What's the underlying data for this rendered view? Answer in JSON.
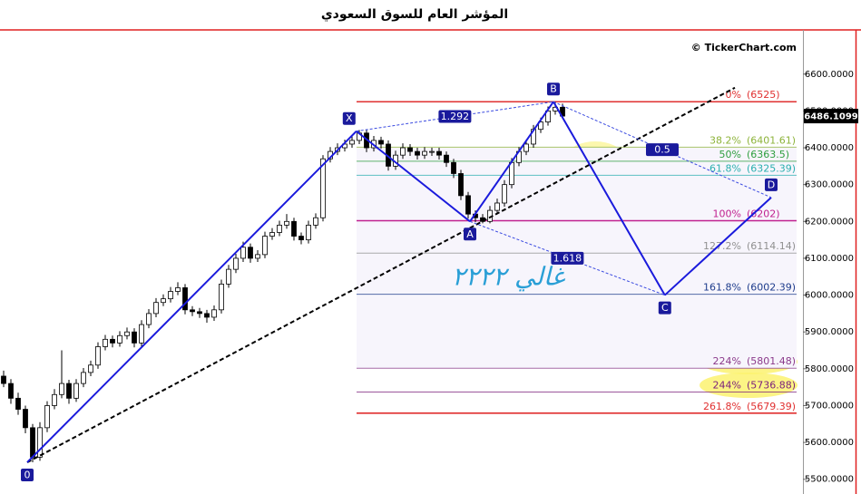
{
  "chart_data": {
    "type": "candlestick",
    "title": "المؤشر العام للسوق السعودي",
    "watermark": "© TickerChart.com",
    "annotation": "غالي ٢٢٢٢",
    "xlim": [
      -0.5,
      109.5
    ],
    "ylim": [
      5460,
      6720
    ],
    "yticks": [
      {
        "value": 5500,
        "label": "5500.0000"
      },
      {
        "value": 5600,
        "label": "5600.0000"
      },
      {
        "value": 5700,
        "label": "5700.0000"
      },
      {
        "value": 5800,
        "label": "5800.0000"
      },
      {
        "value": 5900,
        "label": "5900.0000"
      },
      {
        "value": 6000,
        "label": "6000.0000"
      },
      {
        "value": 6100,
        "label": "6100.0000"
      },
      {
        "value": 6200,
        "label": "6200.0000"
      },
      {
        "value": 6300,
        "label": "6300.0000"
      },
      {
        "value": 6400,
        "label": "6400.0000"
      },
      {
        "value": 6500,
        "label": "6500.0000"
      },
      {
        "value": 6600,
        "label": "6600.0000"
      }
    ],
    "last_price": 6486.1099,
    "candles": [
      [
        5780,
        5795,
        5750,
        5760
      ],
      [
        5760,
        5772,
        5705,
        5720
      ],
      [
        5720,
        5735,
        5675,
        5690
      ],
      [
        5690,
        5700,
        5625,
        5640
      ],
      [
        5640,
        5650,
        5546,
        5560
      ],
      [
        5560,
        5655,
        5550,
        5640
      ],
      [
        5640,
        5712,
        5628,
        5700
      ],
      [
        5700,
        5745,
        5690,
        5730
      ],
      [
        5730,
        5850,
        5720,
        5760
      ],
      [
        5760,
        5770,
        5705,
        5720
      ],
      [
        5720,
        5772,
        5710,
        5760
      ],
      [
        5760,
        5802,
        5750,
        5790
      ],
      [
        5790,
        5822,
        5780,
        5810
      ],
      [
        5810,
        5872,
        5800,
        5860
      ],
      [
        5860,
        5892,
        5850,
        5880
      ],
      [
        5880,
        5890,
        5858,
        5870
      ],
      [
        5870,
        5902,
        5860,
        5890
      ],
      [
        5890,
        5912,
        5880,
        5900
      ],
      [
        5900,
        5910,
        5858,
        5870
      ],
      [
        5870,
        5932,
        5860,
        5920
      ],
      [
        5920,
        5962,
        5910,
        5950
      ],
      [
        5950,
        5992,
        5940,
        5980
      ],
      [
        5980,
        6002,
        5970,
        5990
      ],
      [
        5990,
        6022,
        5980,
        6010
      ],
      [
        6010,
        6035,
        6000,
        6020
      ],
      [
        6020,
        6030,
        5948,
        5960
      ],
      [
        5960,
        5970,
        5943,
        5955
      ],
      [
        5955,
        5965,
        5938,
        5950
      ],
      [
        5950,
        5960,
        5925,
        5940
      ],
      [
        5940,
        5972,
        5930,
        5960
      ],
      [
        5960,
        6042,
        5950,
        6030
      ],
      [
        6030,
        6082,
        6020,
        6070
      ],
      [
        6070,
        6112,
        6060,
        6100
      ],
      [
        6100,
        6145,
        6090,
        6130
      ],
      [
        6130,
        6140,
        6088,
        6100
      ],
      [
        6100,
        6122,
        6090,
        6110
      ],
      [
        6110,
        6172,
        6100,
        6160
      ],
      [
        6160,
        6182,
        6150,
        6170
      ],
      [
        6170,
        6202,
        6160,
        6190
      ],
      [
        6190,
        6220,
        6180,
        6200
      ],
      [
        6200,
        6210,
        6148,
        6160
      ],
      [
        6160,
        6170,
        6138,
        6150
      ],
      [
        6150,
        6202,
        6140,
        6190
      ],
      [
        6190,
        6222,
        6180,
        6210
      ],
      [
        6210,
        6380,
        6200,
        6370
      ],
      [
        6370,
        6402,
        6360,
        6390
      ],
      [
        6390,
        6412,
        6380,
        6400
      ],
      [
        6400,
        6422,
        6390,
        6410
      ],
      [
        6410,
        6432,
        6400,
        6420
      ],
      [
        6420,
        6448,
        6410,
        6440
      ],
      [
        6440,
        6450,
        6388,
        6400
      ],
      [
        6400,
        6432,
        6390,
        6420
      ],
      [
        6420,
        6430,
        6398,
        6410
      ],
      [
        6410,
        6420,
        6338,
        6350
      ],
      [
        6350,
        6392,
        6340,
        6380
      ],
      [
        6380,
        6412,
        6370,
        6400
      ],
      [
        6400,
        6410,
        6378,
        6390
      ],
      [
        6390,
        6400,
        6368,
        6380
      ],
      [
        6380,
        6402,
        6370,
        6390
      ],
      [
        6390,
        6400,
        6378,
        6390
      ],
      [
        6390,
        6400,
        6368,
        6380
      ],
      [
        6380,
        6390,
        6348,
        6360
      ],
      [
        6360,
        6370,
        6318,
        6330
      ],
      [
        6330,
        6340,
        6258,
        6270
      ],
      [
        6270,
        6280,
        6208,
        6220
      ],
      [
        6220,
        6230,
        6198,
        6210
      ],
      [
        6210,
        6220,
        6195,
        6200
      ],
      [
        6200,
        6242,
        6195,
        6230
      ],
      [
        6230,
        6262,
        6220,
        6250
      ],
      [
        6250,
        6312,
        6240,
        6300
      ],
      [
        6300,
        6372,
        6290,
        6360
      ],
      [
        6360,
        6402,
        6350,
        6390
      ],
      [
        6390,
        6422,
        6380,
        6410
      ],
      [
        6410,
        6462,
        6400,
        6450
      ],
      [
        6450,
        6482,
        6440,
        6470
      ],
      [
        6470,
        6512,
        6460,
        6500
      ],
      [
        6500,
        6525,
        6490,
        6510
      ],
      [
        6510,
        6520,
        6480,
        6486
      ]
    ],
    "pattern_points": [
      {
        "label": "0",
        "x": 3.25,
        "y": 5546
      },
      {
        "label": "X",
        "x": 48.6,
        "y": 6445
      },
      {
        "label": "A",
        "x": 64.25,
        "y": 6200
      },
      {
        "label": "B",
        "x": 75.75,
        "y": 6525
      },
      {
        "label": "C",
        "x": 91.1,
        "y": 6000
      },
      {
        "label": "D",
        "x": 105.75,
        "y": 6265
      }
    ],
    "ratios": [
      1.292,
      1.618,
      0.5
    ],
    "trendline": {
      "x": [
        3.25,
        100.75
      ],
      "y": [
        5546,
        6563
      ]
    },
    "fib_levels": [
      {
        "label": "0%",
        "value": 6525,
        "value_label": "(6525)",
        "color": "#e03030"
      },
      {
        "label": "38.2%",
        "value": 6401.61,
        "value_label": "(6401.61)",
        "color": "#8db33a"
      },
      {
        "label": "50%",
        "value": 6363.5,
        "value_label": "(6363.5)",
        "color": "#2e9e3e"
      },
      {
        "label": "61.8%",
        "value": 6325.39,
        "value_label": "(6325.39)",
        "color": "#2aafaf"
      },
      {
        "label": "100%",
        "value": 6202,
        "value_label": "(6202)",
        "color": "#c0208f"
      },
      {
        "label": "127.2%",
        "value": 6114.14,
        "value_label": "(6114.14)",
        "color": "#909090"
      },
      {
        "label": "161.8%",
        "value": 6002.39,
        "value_label": "(6002.39)",
        "color": "#1e3c8c"
      },
      {
        "label": "224%",
        "value": 5801.48,
        "value_label": "(5801.48)",
        "color": "#8b3a8b"
      },
      {
        "label": "244%",
        "value": 5736.88,
        "value_label": "(5736.88)",
        "color": "#7b1f7b"
      },
      {
        "label": "261.8%",
        "value": 5679.39,
        "value_label": "(5679.39)",
        "color": "#e03030"
      }
    ]
  }
}
